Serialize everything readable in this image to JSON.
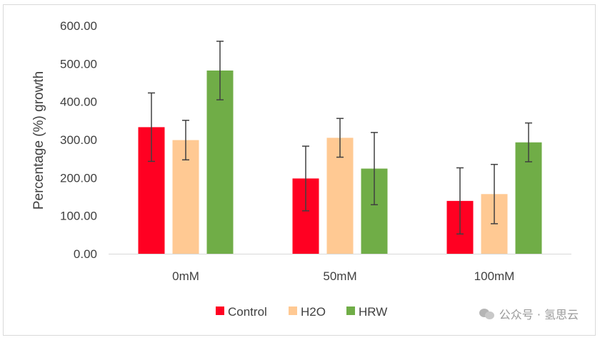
{
  "chart_data": {
    "type": "bar",
    "title": "",
    "xlabel": "",
    "ylabel": "Percentage (%) growth",
    "ylim": [
      0,
      600
    ],
    "yticks": [
      "0.00",
      "100.00",
      "200.00",
      "300.00",
      "400.00",
      "500.00",
      "600.00"
    ],
    "grid": false,
    "legend_position": "bottom",
    "categories": [
      "0mM",
      "50mM",
      "100mM"
    ],
    "series": [
      {
        "name": "Control",
        "color": "#ff0022",
        "values": [
          333,
          198,
          139
        ],
        "errors": [
          90,
          85,
          87
        ]
      },
      {
        "name": "H2O",
        "color": "#ffc993",
        "values": [
          299,
          305,
          157
        ],
        "errors": [
          52,
          51,
          78
        ]
      },
      {
        "name": "HRW",
        "color": "#70ad47",
        "values": [
          482,
          224,
          293
        ],
        "errors": [
          77,
          95,
          51
        ]
      }
    ]
  },
  "watermark": {
    "text": "公众号 · 氢思云"
  }
}
